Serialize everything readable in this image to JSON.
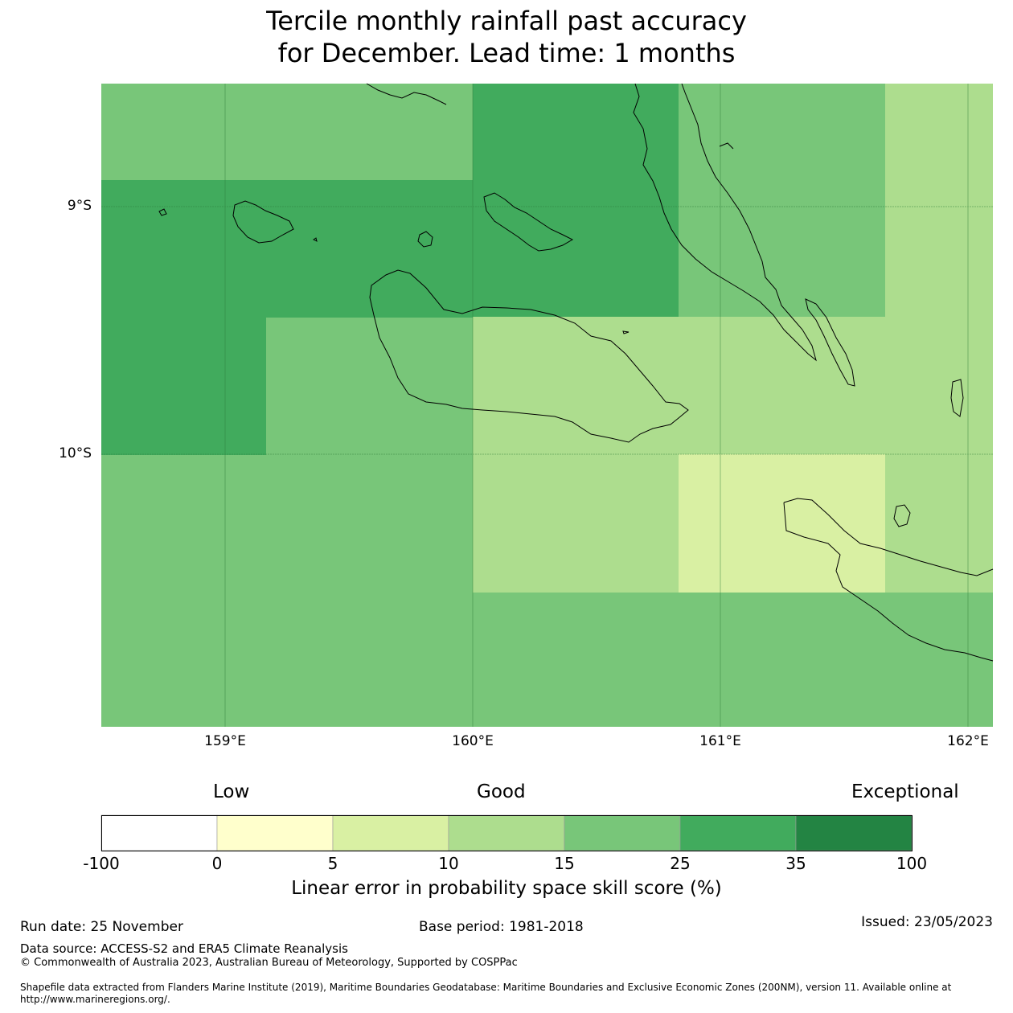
{
  "title": {
    "line1": "Tercile monthly rainfall past accuracy",
    "line2": "for December. Lead time: 1 months"
  },
  "map": {
    "lat_labels": [
      "9°S",
      "10°S"
    ],
    "lon_labels": [
      "159°E",
      "160°E",
      "161°E",
      "162°E"
    ],
    "background_color": "#78c679"
  },
  "colorbar": {
    "category_labels": [
      "Low",
      "Good",
      "Exceptional"
    ],
    "tick_labels": [
      "-100",
      "0",
      "5",
      "10",
      "15",
      "25",
      "35",
      "100"
    ],
    "colors": [
      "#ffffff",
      "#ffffcc",
      "#d9f0a3",
      "#addd8e",
      "#78c679",
      "#41ab5d",
      "#238443"
    ],
    "title": "Linear error in probability space skill score (%)"
  },
  "footer": {
    "run_date": "Run date: 25 November",
    "base_period": "Base period: 1981-2018",
    "issued": "Issued: 23/05/2023",
    "data_source": "Data source: ACCESS-S2 and ERA5 Climate Reanalysis",
    "copyright": "© Commonwealth of Australia 2023, Australian Bureau of Meteorology, Supported by COSPPac",
    "shapefile_line1": "Shapefile data extracted from Flanders Marine Institute (2019), Maritime Boundaries Geodatabase: Maritime Boundaries and Exclusive Economic Zones (200NM), version 11. Available online at",
    "shapefile_line2": "http://www.marineregions.org/."
  }
}
